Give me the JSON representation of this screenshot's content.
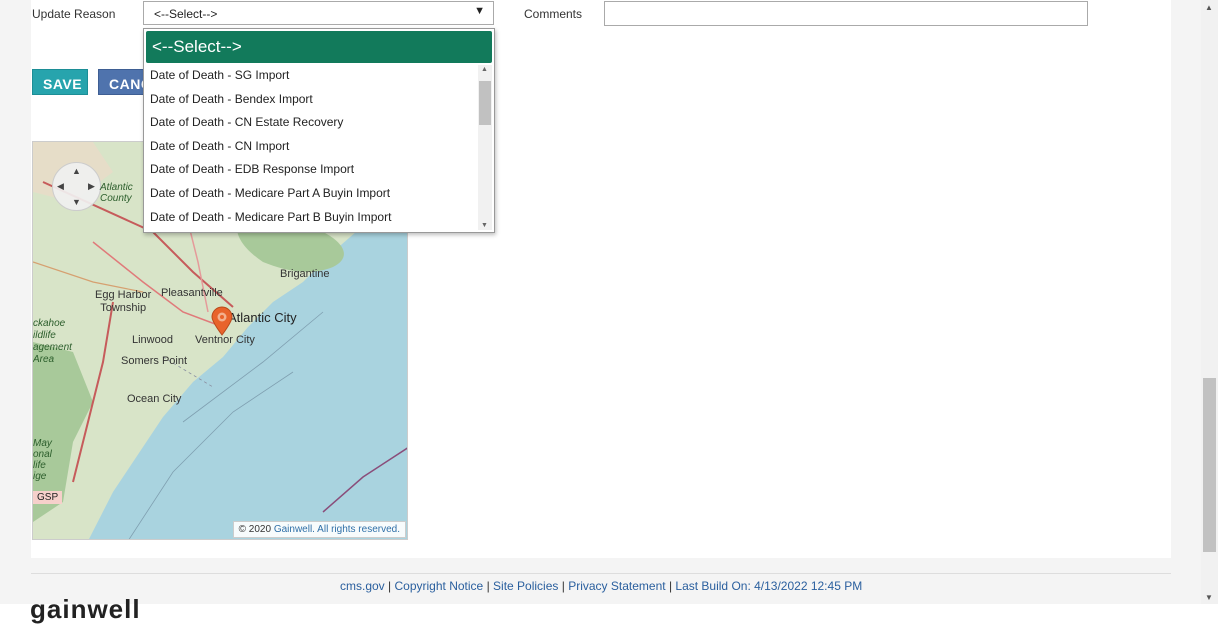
{
  "form": {
    "update_reason_label": "Update Reason",
    "update_reason_value": "<--Select-->",
    "comments_label": "Comments",
    "comments_value": ""
  },
  "buttons": {
    "save": "SAVE",
    "cancel": "CANC"
  },
  "dropdown": {
    "selected": "<--Select-->",
    "options": [
      "Date of Death - SG Import",
      "Date of Death - Bendex Import",
      "Date of Death - CN Estate Recovery",
      "Date of Death - CN Import",
      "Date of Death - EDB Response Import",
      "Date of Death - Medicare Part A Buyin Import",
      "Date of Death - Medicare Part B Buyin Import"
    ],
    "scroll_position": 0.0
  },
  "map": {
    "labels": {
      "atlantic_county": "Atlantic\nCounty",
      "brigantine": "Brigantine",
      "pleasantville": "Pleasantville",
      "egg_harbor": "Egg Harbor\nTownship",
      "atlantic_city": "Atlantic City",
      "linwood": "Linwood",
      "ventnor": "Ventnor City",
      "somers_point": "Somers Point",
      "ocean_city": "Ocean City",
      "left_edge": "ckahoe\nildlife\nagement\nArea",
      "cape_may": "May\nonal\nlife\nige",
      "gsp": "GSP"
    },
    "copyright_prefix": "© 2020",
    "copyright_link": "Gainwell. All rights reserved.",
    "marker_color": "#e8632b"
  },
  "footer": {
    "cms": "cms.gov",
    "copyright": "Copyright Notice",
    "policies": "Site Policies",
    "privacy": "Privacy Statement",
    "build": "Last Build On: 4/13/2022 12:45 PM",
    "separator": "|"
  },
  "logo_text": "gainwell",
  "colors": {
    "select_highlight": "#127a5b",
    "save_button": "#27a4ad",
    "cancel_button": "#4f73ad",
    "link": "#2a5f9e"
  }
}
